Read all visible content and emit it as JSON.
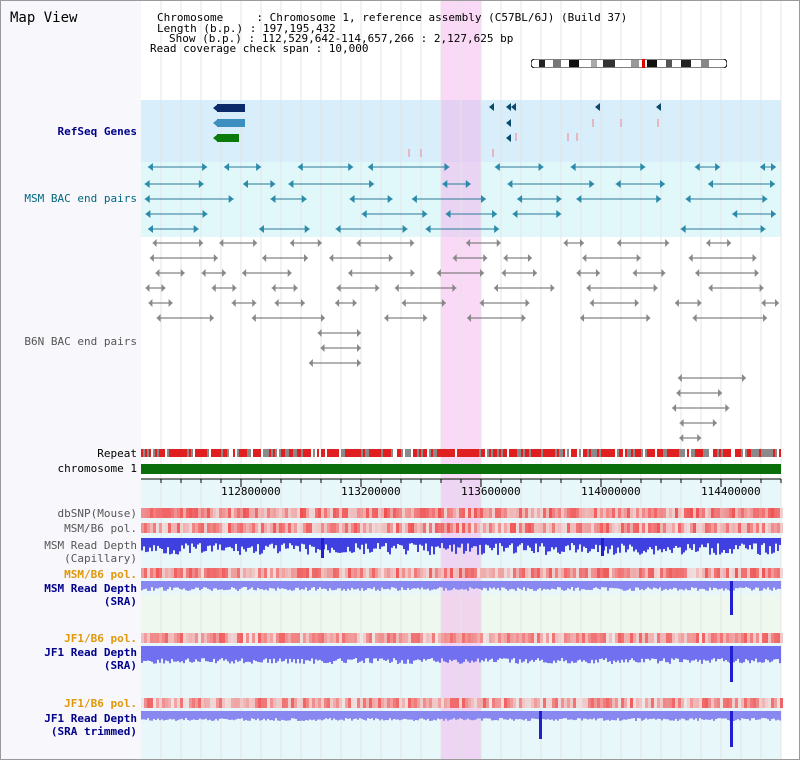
{
  "title": "Map View",
  "info": {
    "chromosome": "Chromosome     : Chromosome 1, reference assembly (C57BL/6J) (Build 37)",
    "length": "Length (b.p.) : 197,195,432",
    "show": "Show (b.p.) : 112,529,642-114,657,266 : 2,127,625 bp",
    "coverage": "Read coverage check span : 10,000"
  },
  "tracks": {
    "refseq": "RefSeq Genes",
    "msm_bac": "MSM BAC end pairs",
    "b6n_bac": "B6N BAC end pairs",
    "repeat": "Repeat",
    "chromosome": "chromosome 1",
    "dbsnp": "dbSNP(Mouse)",
    "msm_b6_pol_1": "MSM/B6 pol.",
    "msm_depth_cap_1": "MSM Read Depth",
    "msm_depth_cap_2": "(Capillary)",
    "msm_b6_pol_2": "MSM/B6 pol.",
    "msm_depth_sra_1": "MSM Read Depth",
    "msm_depth_sra_2": "(SRA)",
    "jf1_b6_pol_1": "JF1/B6 pol.",
    "jf1_depth_sra_1": "JF1 Read Depth",
    "jf1_depth_sra_2": "(SRA)",
    "jf1_b6_pol_2": "JF1/B6 pol.",
    "jf1_depth_trim_1": "JF1 Read Depth",
    "jf1_depth_trim_2": "(SRA trimmed)"
  },
  "axis_ticks": [
    "112800000",
    "113200000",
    "113600000",
    "114000000",
    "114400000"
  ],
  "colors": {
    "refseq_bg": "#d8eefa",
    "msm_bac_bg": "#e0f8fa",
    "chromosome_bar": "#0a6e0a",
    "highlight": "#f5aaeb",
    "depth_blue": "#3a3aee",
    "pol_red": "#e83030",
    "navy_label": "#00008b",
    "orange_label": "#e0980a"
  }
}
